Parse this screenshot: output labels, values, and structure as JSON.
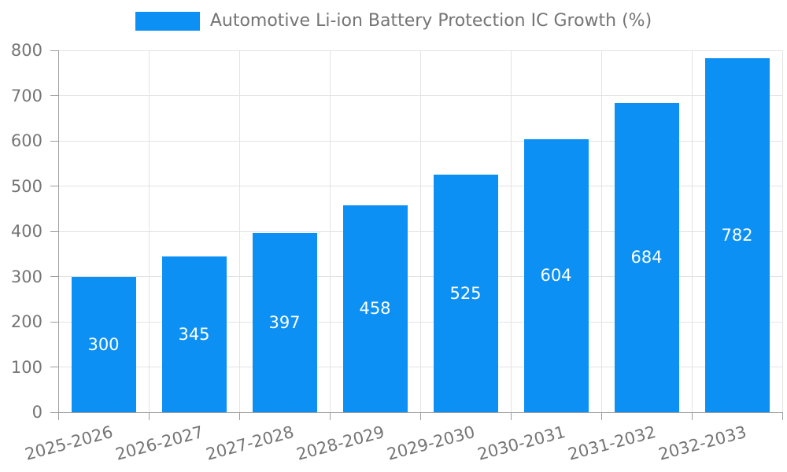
{
  "chart_data": {
    "type": "bar",
    "title": "",
    "xlabel": "",
    "ylabel": "",
    "legend_position": "top-center",
    "categories": [
      "2025-2026",
      "2026-2027",
      "2027-2028",
      "2028-2029",
      "2029-2030",
      "2030-2031",
      "2031-2032",
      "2032-2033"
    ],
    "series": [
      {
        "name": "Automotive Li-ion Battery Protection IC Growth (%)",
        "values": [
          300,
          345,
          397,
          458,
          525,
          604,
          684,
          782
        ]
      }
    ],
    "value_labels_position": "inside-center",
    "ylim": [
      0,
      800
    ],
    "y_ticks": [
      0,
      100,
      200,
      300,
      400,
      500,
      600,
      700,
      800
    ],
    "grid": "horizontal lines at y ticks, vertical lines at category boundaries",
    "x_tick_rotation_deg": 15,
    "colors": {
      "bar": "#0c90f4",
      "value_label": "#ffffff",
      "grid_line": "#e3e3e3",
      "axis_line": "#9e9e9e",
      "tick_label": "#757575",
      "legend_text": "#757575",
      "background": "#ffffff"
    }
  }
}
